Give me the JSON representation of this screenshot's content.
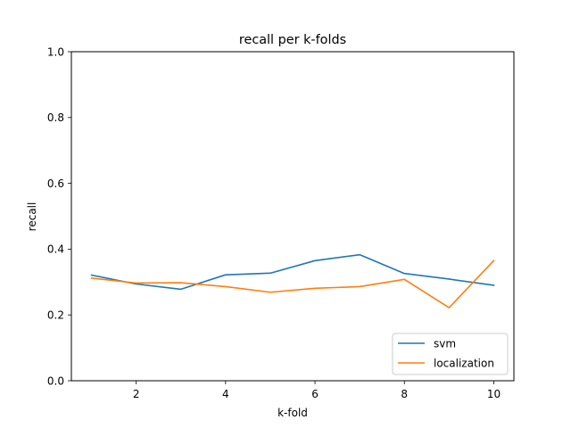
{
  "chart_data": {
    "type": "line",
    "title": "recall per k-folds",
    "xlabel": "k-fold",
    "ylabel": "recall",
    "xlim": [
      0.55,
      10.45
    ],
    "ylim": [
      0.0,
      1.0
    ],
    "xticks": [
      2,
      4,
      6,
      8,
      10
    ],
    "xtick_labels": [
      "2",
      "4",
      "6",
      "8",
      "10"
    ],
    "yticks": [
      0.0,
      0.2,
      0.4,
      0.6,
      0.8,
      1.0
    ],
    "ytick_labels": [
      "0.0",
      "0.2",
      "0.4",
      "0.6",
      "0.8",
      "1.0"
    ],
    "grid": false,
    "legend_position": "lower right",
    "x": [
      1,
      2,
      3,
      4,
      5,
      6,
      7,
      8,
      9,
      10
    ],
    "series": [
      {
        "name": "svm",
        "color": "#1f77b4",
        "values": [
          0.321,
          0.294,
          0.278,
          0.322,
          0.327,
          0.365,
          0.383,
          0.326,
          0.309,
          0.29
        ]
      },
      {
        "name": "localization",
        "color": "#ff7f0e",
        "values": [
          0.312,
          0.297,
          0.298,
          0.286,
          0.269,
          0.281,
          0.286,
          0.308,
          0.222,
          0.365
        ]
      }
    ]
  }
}
